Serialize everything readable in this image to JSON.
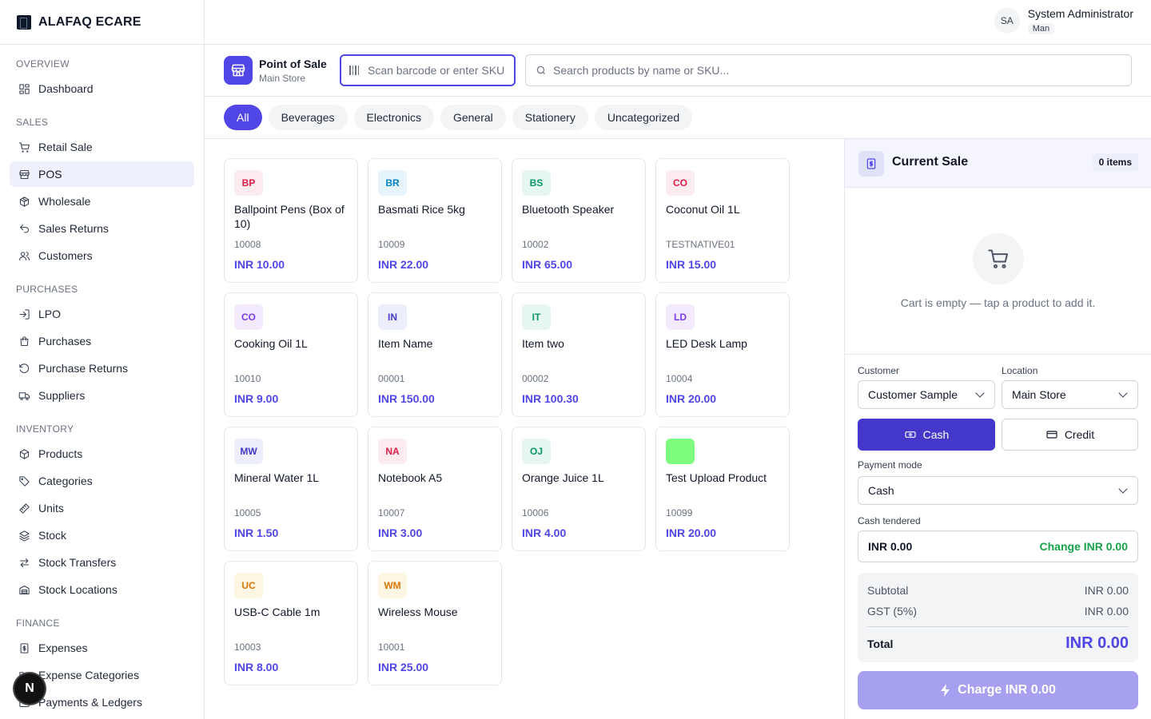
{
  "brand": {
    "name": "ALAFAQ ECARE"
  },
  "user": {
    "initials": "SA",
    "name": "System Administrator",
    "role": "Man"
  },
  "sidebar": {
    "sections": [
      {
        "title": "OVERVIEW",
        "items": [
          {
            "label": "Dashboard",
            "icon": "dashboard-icon"
          }
        ]
      },
      {
        "title": "SALES",
        "items": [
          {
            "label": "Retail Sale",
            "icon": "cart-icon"
          },
          {
            "label": "POS",
            "icon": "store-icon",
            "active": true
          },
          {
            "label": "Wholesale",
            "icon": "package-icon"
          },
          {
            "label": "Sales Returns",
            "icon": "undo-icon"
          },
          {
            "label": "Customers",
            "icon": "users-icon"
          }
        ]
      },
      {
        "title": "PURCHASES",
        "items": [
          {
            "label": "LPO",
            "icon": "login-icon"
          },
          {
            "label": "Purchases",
            "icon": "bag-icon"
          },
          {
            "label": "Purchase Returns",
            "icon": "rotate-ccw-icon"
          },
          {
            "label": "Suppliers",
            "icon": "truck-icon"
          }
        ]
      },
      {
        "title": "INVENTORY",
        "items": [
          {
            "label": "Products",
            "icon": "box-icon"
          },
          {
            "label": "Categories",
            "icon": "tag-icon"
          },
          {
            "label": "Units",
            "icon": "ruler-icon"
          },
          {
            "label": "Stock",
            "icon": "layers-icon"
          },
          {
            "label": "Stock Transfers",
            "icon": "transfer-icon"
          },
          {
            "label": "Stock Locations",
            "icon": "warehouse-icon"
          }
        ]
      },
      {
        "title": "FINANCE",
        "items": [
          {
            "label": "Expenses",
            "icon": "receipt-icon"
          },
          {
            "label": "Expense Categories",
            "icon": "folder-icon"
          },
          {
            "label": "Payments & Ledgers",
            "icon": "wallet-icon"
          }
        ]
      }
    ]
  },
  "pos": {
    "title": "Point of Sale",
    "subtitle": "Main Store",
    "barcode_placeholder": "Scan barcode or enter SKU",
    "search_placeholder": "Search products by name or SKU..."
  },
  "categories": [
    "All",
    "Beverages",
    "Electronics",
    "General",
    "Stationery",
    "Uncategorized"
  ],
  "products": [
    {
      "initials": "BP",
      "name": "Ballpoint Pens (Box of 10)",
      "sku": "10008",
      "price": "INR 10.00",
      "color": "#fdecef",
      "text_color": "#e11d48"
    },
    {
      "initials": "BR",
      "name": "Basmati Rice 5kg",
      "sku": "10009",
      "price": "INR 22.00",
      "color": "#e6f4fb",
      "text_color": "#0284c7"
    },
    {
      "initials": "BS",
      "name": "Bluetooth Speaker",
      "sku": "10002",
      "price": "INR 65.00",
      "color": "#e6f7ef",
      "text_color": "#059669"
    },
    {
      "initials": "CO",
      "name": "Coconut Oil 1L",
      "sku": "TESTNATIVE01",
      "price": "INR 15.00",
      "color": "#fdecef",
      "text_color": "#e11d48"
    },
    {
      "initials": "CO",
      "name": "Cooking Oil 1L",
      "sku": "10010",
      "price": "INR 9.00",
      "color": "#f3eafd",
      "text_color": "#7c3aed"
    },
    {
      "initials": "IN",
      "name": "Item Name",
      "sku": "00001",
      "price": "INR 150.00",
      "color": "#eceefb",
      "text_color": "#4338ca"
    },
    {
      "initials": "IT",
      "name": "Item two",
      "sku": "00002",
      "price": "INR 100.30",
      "color": "#e6f7ef",
      "text_color": "#059669"
    },
    {
      "initials": "LD",
      "name": "LED Desk Lamp",
      "sku": "10004",
      "price": "INR 20.00",
      "color": "#f3eafd",
      "text_color": "#7c3aed"
    },
    {
      "initials": "MW",
      "name": "Mineral Water 1L",
      "sku": "10005",
      "price": "INR 1.50",
      "color": "#eceefb",
      "text_color": "#4338ca"
    },
    {
      "initials": "NA",
      "name": "Notebook A5",
      "sku": "10007",
      "price": "INR 3.00",
      "color": "#fdecef",
      "text_color": "#e11d48"
    },
    {
      "initials": "OJ",
      "name": "Orange Juice 1L",
      "sku": "10006",
      "price": "INR 4.00",
      "color": "#e6f7ef",
      "text_color": "#059669"
    },
    {
      "initials": "",
      "name": "Test Upload Product",
      "sku": "10099",
      "price": "INR 20.00",
      "color": "#7dfc7d",
      "text_color": "#059669"
    },
    {
      "initials": "UC",
      "name": "USB-C Cable 1m",
      "sku": "10003",
      "price": "INR 8.00",
      "color": "#fdf6e3",
      "text_color": "#d97706"
    },
    {
      "initials": "WM",
      "name": "Wireless Mouse",
      "sku": "10001",
      "price": "INR 25.00",
      "color": "#fdf6e3",
      "text_color": "#d97706"
    }
  ],
  "sale": {
    "title": "Current Sale",
    "count": "0 items",
    "empty_text": "Cart is empty — tap a product to add it.",
    "customer_label": "Customer",
    "customer_value": "Customer Sample",
    "location_label": "Location",
    "location_value": "Main Store",
    "cash_label": "Cash",
    "credit_label": "Credit",
    "payment_mode_label": "Payment mode",
    "payment_mode_value": "Cash",
    "tendered_label": "Cash tendered",
    "tendered_value": "INR 0.00",
    "change_text": "Change INR 0.00",
    "subtotal_label": "Subtotal",
    "subtotal_value": "INR 0.00",
    "gst_label": "GST (5%)",
    "gst_value": "INR 0.00",
    "total_label": "Total",
    "total_value": "INR 0.00",
    "charge_label": "Charge INR 0.00"
  },
  "fab": {
    "letter": "N"
  }
}
